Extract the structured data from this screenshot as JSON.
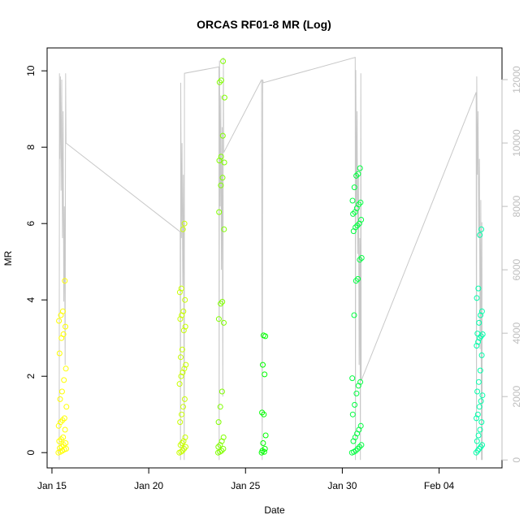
{
  "chart_data": {
    "type": "scatter",
    "title": "ORCAS RF01-8 MR (Log)",
    "xlabel": "Date",
    "ylabel": "MR",
    "x_axis": {
      "type": "date",
      "range": [
        "2016-01-14T18:00",
        "2016-02-07T06:00"
      ],
      "ticks": [
        {
          "value": "2016-01-15",
          "label": "Jan 15"
        },
        {
          "value": "2016-01-20",
          "label": "Jan 20"
        },
        {
          "value": "2016-01-25",
          "label": "Jan 25"
        },
        {
          "value": "2016-01-30",
          "label": "Jan 30"
        },
        {
          "value": "2016-02-04",
          "label": "Feb 04"
        }
      ]
    },
    "y_left": {
      "range": [
        -0.4,
        10.6
      ],
      "ticks": [
        0,
        2,
        4,
        6,
        8,
        10
      ]
    },
    "y_right": {
      "range": [
        -250,
        13000
      ],
      "ticks": [
        0,
        2000,
        4000,
        6000,
        8000,
        10000,
        12000
      ],
      "color": "#bebebe"
    },
    "grid": false,
    "legend": "none",
    "colors": {
      "altitude_line": "#c8c8c8",
      "axis": "#000000",
      "right_axis": "#bebebe"
    },
    "flights": [
      {
        "color": "#ffff00",
        "time_range": [
          "2016-01-15T08:00",
          "2016-01-15T18:00"
        ],
        "mr": [
          0.0,
          0.02,
          0.05,
          0.08,
          0.1,
          0.12,
          0.15,
          0.2,
          0.25,
          0.3,
          0.35,
          0.4,
          0.6,
          0.7,
          0.8,
          0.85,
          0.9,
          1.2,
          1.4,
          1.6,
          1.9,
          2.2,
          2.6,
          3.0,
          3.1,
          3.3,
          3.45,
          3.6,
          3.7,
          4.5
        ]
      },
      {
        "color": "#c8ff00",
        "time_range": [
          "2016-01-21T14:00",
          "2016-01-21T22:00"
        ],
        "mr": [
          0.0,
          0.02,
          0.05,
          0.1,
          0.15,
          0.2,
          0.25,
          0.3,
          0.4,
          0.8,
          1.0,
          1.2,
          1.4,
          1.8,
          2.0,
          2.1,
          2.2,
          2.3,
          2.5,
          2.7,
          3.2,
          3.3,
          3.5,
          3.6,
          3.7,
          4.0,
          4.2,
          4.3,
          5.85,
          6.0
        ]
      },
      {
        "color": "#80ff00",
        "time_range": [
          "2016-01-23T14:00",
          "2016-01-23T22:00"
        ],
        "mr": [
          0.0,
          0.02,
          0.05,
          0.1,
          0.15,
          0.2,
          0.3,
          0.4,
          0.8,
          1.2,
          1.6,
          3.4,
          3.5,
          3.9,
          3.95,
          5.85,
          6.3,
          7.0,
          7.2,
          7.6,
          7.65,
          7.75,
          8.3,
          9.3,
          9.7,
          9.75,
          10.25
        ]
      },
      {
        "color": "#00ff00",
        "time_range": [
          "2016-01-25T20:00",
          "2016-01-26T01:00"
        ],
        "mr": [
          0.0,
          0.02,
          0.05,
          0.1,
          0.25,
          0.45,
          1.0,
          1.05,
          2.05,
          2.3,
          3.05,
          3.07
        ]
      },
      {
        "color": "#00ff40",
        "time_range": [
          "2016-01-30T12:00",
          "2016-01-31T00:00"
        ],
        "mr": [
          0.0,
          0.02,
          0.05,
          0.1,
          0.15,
          0.2,
          0.3,
          0.4,
          0.5,
          0.6,
          0.7,
          1.0,
          1.25,
          1.55,
          1.75,
          1.85,
          1.95,
          3.6,
          4.5,
          4.55,
          5.05,
          5.1,
          5.8,
          5.9,
          5.95,
          6.0,
          6.1,
          6.25,
          6.3,
          6.4,
          6.5,
          6.55,
          6.6,
          6.95,
          7.25,
          7.3,
          7.45
        ]
      },
      {
        "color": "#00ffaa",
        "time_range": [
          "2016-02-05T22:00",
          "2016-02-06T06:00"
        ],
        "mr": [
          0.0,
          0.05,
          0.1,
          0.15,
          0.2,
          0.3,
          0.45,
          0.6,
          0.8,
          0.9,
          1.0,
          1.2,
          1.35,
          1.5,
          1.6,
          1.85,
          2.15,
          2.55,
          2.8,
          2.9,
          3.0,
          3.05,
          3.1,
          3.12,
          3.4,
          3.6,
          3.7,
          4.05,
          4.3,
          5.7,
          5.85
        ]
      }
    ],
    "altitude": {
      "color": "#c8c8c8",
      "points": [
        [
          "2016-01-15T09:00",
          0
        ],
        [
          "2016-01-15T09:20",
          12200
        ],
        [
          "2016-01-15T09:40",
          9500
        ],
        [
          "2016-01-15T10:30",
          12100
        ],
        [
          "2016-01-15T11:20",
          8500
        ],
        [
          "2016-01-15T12:10",
          12000
        ],
        [
          "2016-01-15T13:00",
          7000
        ],
        [
          "2016-01-15T13:50",
          11000
        ],
        [
          "2016-01-15T14:40",
          5000
        ],
        [
          "2016-01-15T15:30",
          8000
        ],
        [
          "2016-01-15T16:20",
          3000
        ],
        [
          "2016-01-15T17:00",
          12200
        ],
        [
          "2016-01-15T17:30",
          10000
        ],
        [
          "2016-01-21T15:00",
          7200
        ],
        [
          "2016-01-21T15:20",
          0
        ],
        [
          "2016-01-21T15:40",
          11900
        ],
        [
          "2016-01-21T16:30",
          7000
        ],
        [
          "2016-01-21T17:20",
          10000
        ],
        [
          "2016-01-21T18:10",
          5500
        ],
        [
          "2016-01-21T19:00",
          9000
        ],
        [
          "2016-01-21T20:00",
          0
        ],
        [
          "2016-01-21T20:20",
          12200
        ],
        [
          "2016-01-23T15:00",
          12400
        ],
        [
          "2016-01-23T15:20",
          0
        ],
        [
          "2016-01-23T15:40",
          12600
        ],
        [
          "2016-01-23T16:30",
          8000
        ],
        [
          "2016-01-23T17:20",
          11500
        ],
        [
          "2016-01-23T18:10",
          6000
        ],
        [
          "2016-01-23T19:00",
          10500
        ],
        [
          "2016-01-23T19:50",
          2000
        ],
        [
          "2016-01-23T20:30",
          12700
        ],
        [
          "2016-01-23T21:00",
          9700
        ],
        [
          "2016-01-25T20:00",
          12000
        ],
        [
          "2016-01-25T20:40",
          0
        ],
        [
          "2016-01-25T21:20",
          12000
        ],
        [
          "2016-01-25T22:00",
          11900
        ],
        [
          "2016-01-30T16:00",
          12700
        ],
        [
          "2016-01-30T16:20",
          0
        ],
        [
          "2016-01-30T16:40",
          12300
        ],
        [
          "2016-01-30T17:30",
          8000
        ],
        [
          "2016-01-30T18:20",
          11000
        ],
        [
          "2016-01-30T19:10",
          6500
        ],
        [
          "2016-01-30T20:00",
          9000
        ],
        [
          "2016-01-30T20:50",
          3000
        ],
        [
          "2016-01-30T21:40",
          7000
        ],
        [
          "2016-01-30T22:30",
          0
        ],
        [
          "2016-01-30T23:00",
          12200
        ],
        [
          "2016-01-30T23:30",
          2500
        ],
        [
          "2016-02-05T22:00",
          11600
        ],
        [
          "2016-02-05T22:20",
          0
        ],
        [
          "2016-02-05T22:40",
          12100
        ],
        [
          "2016-02-05T23:30",
          9000
        ],
        [
          "2016-02-06T00:20",
          11000
        ],
        [
          "2016-02-06T01:10",
          7000
        ],
        [
          "2016-02-06T02:00",
          9500
        ],
        [
          "2016-02-06T02:50",
          3500
        ],
        [
          "2016-02-06T03:40",
          8200
        ],
        [
          "2016-02-06T04:30",
          0
        ],
        [
          "2016-02-06T05:00",
          7500
        ],
        [
          "2016-02-06T05:30",
          0
        ]
      ]
    }
  }
}
